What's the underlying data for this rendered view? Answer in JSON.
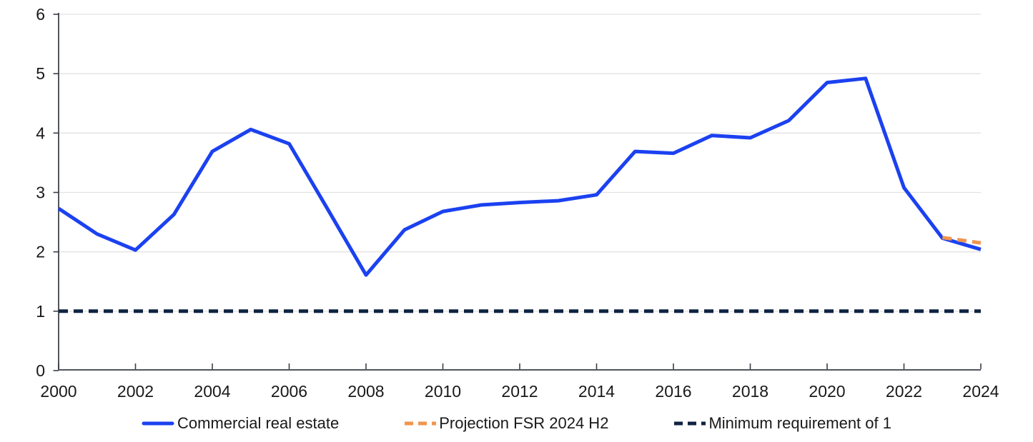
{
  "chart_data": {
    "type": "line",
    "title": "",
    "xlabel": "",
    "ylabel": "",
    "xlim": [
      2000,
      2024
    ],
    "ylim": [
      0,
      6
    ],
    "y_ticks": [
      0,
      1,
      2,
      3,
      4,
      5,
      6
    ],
    "x_ticks": [
      2000,
      2002,
      2004,
      2006,
      2008,
      2010,
      2012,
      2014,
      2016,
      2018,
      2020,
      2022,
      2024
    ],
    "grid": "horizontal",
    "legend_position": "bottom",
    "series": [
      {
        "name": "Commercial real estate",
        "line_style": "solid",
        "color": "#1B41F0",
        "x": [
          2000,
          2001,
          2002,
          2003,
          2004,
          2005,
          2006,
          2007,
          2008,
          2009,
          2010,
          2011,
          2012,
          2013,
          2014,
          2015,
          2016,
          2017,
          2018,
          2019,
          2020,
          2021,
          2022,
          2023,
          2024
        ],
        "values": [
          2.73,
          2.3,
          2.03,
          2.63,
          3.69,
          4.06,
          3.82,
          2.72,
          1.61,
          2.37,
          2.68,
          2.79,
          2.83,
          2.86,
          2.96,
          3.69,
          3.66,
          3.96,
          3.92,
          4.21,
          4.85,
          4.92,
          3.08,
          2.23,
          2.04
        ]
      },
      {
        "name": "Projection FSR 2024 H2",
        "line_style": "dashed",
        "color": "#F0954E",
        "x": [
          2023,
          2024
        ],
        "values": [
          2.24,
          2.15
        ]
      },
      {
        "name": "Minimum requirement of 1",
        "line_style": "dashed",
        "color": "#0F2342",
        "x": [
          2000,
          2024
        ],
        "values": [
          1,
          1
        ]
      }
    ]
  },
  "colors": {
    "background": "#FFFFFF",
    "gridline": "#E2E2E2",
    "axis": "#51555C",
    "tick": "#3A3F4A",
    "tick_label_text": "#191919",
    "legend_text": "#191919"
  }
}
